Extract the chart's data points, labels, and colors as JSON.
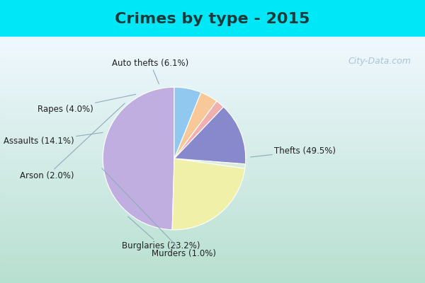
{
  "title": "Crimes by type - 2015",
  "title_fontsize": 16,
  "title_fontweight": "bold",
  "title_color": "#1a3a3a",
  "labels": [
    "Thefts",
    "Burglaries",
    "Murders",
    "Assaults",
    "Arson",
    "Rapes",
    "Auto thefts"
  ],
  "label_texts": [
    "Thefts (49.5%)",
    "Burglaries (23.2%)",
    "Murders (1.0%)",
    "Assaults (14.1%)",
    "Arson (2.0%)",
    "Rapes (4.0%)",
    "Auto thefts (6.1%)"
  ],
  "values": [
    49.5,
    23.2,
    1.0,
    14.1,
    2.0,
    4.0,
    6.1
  ],
  "colors": [
    "#c0aee0",
    "#f0f0a8",
    "#d8eed8",
    "#8888cc",
    "#f0b0b0",
    "#f8c898",
    "#90c8f0"
  ],
  "bg_cyan": "#00e8f8",
  "bg_gradient_left": "#b8e8d8",
  "bg_gradient_right": "#e8f0f8",
  "watermark": "City-Data.com",
  "watermark_color": "#a0bcd0",
  "startangle": 90,
  "label_color": "#202020",
  "label_fontsize": 8.5,
  "line_color": "#90aabb"
}
